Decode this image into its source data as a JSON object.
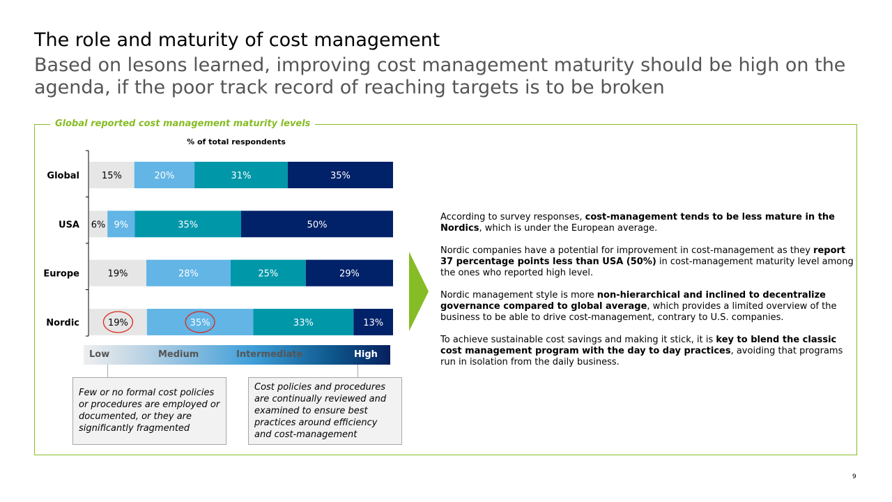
{
  "slide": {
    "title": "The role and maturity of cost management",
    "subtitle": "Based on lesons learned, improving cost management maturity should be high on the agenda, if the poor track record of reaching targets is to be broken",
    "page_number": "9"
  },
  "panel": {
    "label": "Global reported cost management maturity levels"
  },
  "chart_data": {
    "type": "bar",
    "orientation": "horizontal-stacked-100",
    "title": "% of total respondents",
    "categories": [
      "Global",
      "USA",
      "Europe",
      "Nordic"
    ],
    "series": [
      {
        "name": "Low",
        "values": [
          15,
          6,
          19,
          19
        ],
        "labels": [
          "15%",
          "6%",
          "19%",
          "19%"
        ],
        "color": "#e6e6e6",
        "text_color": "#000000"
      },
      {
        "name": "Medium",
        "values": [
          20,
          9,
          28,
          35
        ],
        "labels": [
          "20%",
          "9%",
          "28%",
          "35%"
        ],
        "color": "#62b5e5",
        "text_color": "#ffffff"
      },
      {
        "name": "Intermediate",
        "values": [
          31,
          35,
          25,
          33
        ],
        "labels": [
          "31%",
          "35%",
          "25%",
          "33%"
        ],
        "color": "#0097a9",
        "text_color": "#ffffff"
      },
      {
        "name": "High",
        "values": [
          35,
          50,
          29,
          13
        ],
        "labels": [
          "35%",
          "50%",
          "29%",
          "13%"
        ],
        "color": "#012169",
        "text_color": "#ffffff"
      }
    ],
    "highlights": [
      {
        "category": "Nordic",
        "series": "Low",
        "color": "#da291c"
      },
      {
        "category": "Nordic",
        "series": "Medium",
        "color": "#da291c"
      }
    ]
  },
  "legend": {
    "items": [
      {
        "label": "Low",
        "color": "#555555"
      },
      {
        "label": "Medium",
        "color": "#555555"
      },
      {
        "label": "Intermediate",
        "color": "#555555"
      },
      {
        "label": "High",
        "color": "#ffffff"
      }
    ]
  },
  "notes": {
    "low": "Few or no formal cost policies or procedures are employed or documented, or they are significantly fragmented",
    "high": "Cost policies and procedures are continually reviewed and examined to ensure best practices around efficiency and cost-management"
  },
  "commentary": {
    "paragraphs": [
      [
        {
          "text": "According to survey responses, ",
          "bold": false
        },
        {
          "text": "cost-management tends to be less mature in the Nordics",
          "bold": true
        },
        {
          "text": ", which is under the European average.",
          "bold": false
        }
      ],
      [
        {
          "text": "Nordic companies have a potential for improvement in cost-management as they ",
          "bold": false
        },
        {
          "text": "report 37 percentage points less than USA (50%)",
          "bold": true
        },
        {
          "text": " in cost-management maturity level among the ones who reported high level.",
          "bold": false
        }
      ],
      [
        {
          "text": "Nordic management style is more ",
          "bold": false
        },
        {
          "text": "non-hierarchical and inclined to decentralize governance compared to global average",
          "bold": true
        },
        {
          "text": ", which provides a limited overview of the business to be able to drive cost-management, contrary to U.S. companies.",
          "bold": false
        }
      ],
      [
        {
          "text": "To achieve sustainable cost savings and making it stick, it is ",
          "bold": false
        },
        {
          "text": "key to blend the classic cost management program with the day to day practices",
          "bold": true
        },
        {
          "text": ", avoiding that programs run in isolation from the daily business.",
          "bold": false
        }
      ]
    ]
  }
}
